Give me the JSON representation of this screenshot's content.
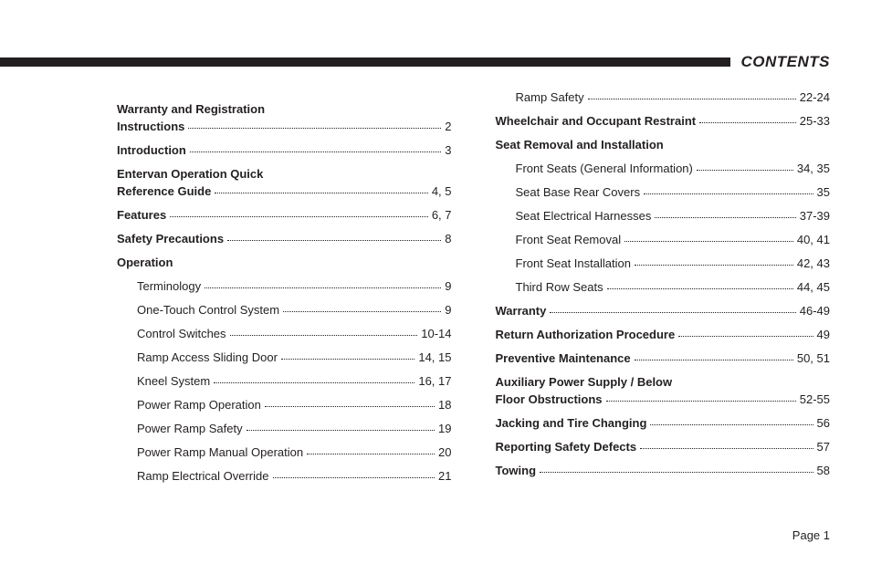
{
  "header": {
    "title": "CONTENTS",
    "bar_color": "#231f20",
    "title_color": "#231f20"
  },
  "footer": {
    "text": "Page 1"
  },
  "columns": [
    [
      {
        "type": "multi",
        "line1": "Warranty and Registration",
        "line2": "Instructions",
        "page": "2"
      },
      {
        "type": "main",
        "label": "Introduction",
        "page": "3"
      },
      {
        "type": "multi",
        "line1": "Entervan Operation Quick",
        "line2": "Reference Guide",
        "page": "4, 5"
      },
      {
        "type": "main",
        "label": "Features",
        "page": "6, 7"
      },
      {
        "type": "main",
        "label": "Safety Precautions",
        "page": "8"
      },
      {
        "type": "heading",
        "label": "Operation"
      },
      {
        "type": "sub",
        "label": "Terminology",
        "page": "9"
      },
      {
        "type": "sub",
        "label": "One-Touch Control System",
        "page": "9"
      },
      {
        "type": "sub",
        "label": "Control Switches",
        "page": "10-14"
      },
      {
        "type": "sub",
        "label": "Ramp Access Sliding Door",
        "page": "14, 15"
      },
      {
        "type": "sub",
        "label": "Kneel System",
        "page": "16, 17"
      },
      {
        "type": "sub",
        "label": "Power Ramp Operation",
        "page": "18"
      },
      {
        "type": "sub",
        "label": "Power Ramp Safety",
        "page": "19"
      },
      {
        "type": "sub",
        "label": "Power Ramp Manual Operation",
        "page": "20"
      },
      {
        "type": "sub",
        "label": "Ramp Electrical Override",
        "page": "21"
      }
    ],
    [
      {
        "type": "sub",
        "label": "Ramp Safety",
        "page": "22-24"
      },
      {
        "type": "main",
        "label": "Wheelchair and Occupant Restraint",
        "page": "25-33"
      },
      {
        "type": "heading",
        "label": "Seat Removal and Installation"
      },
      {
        "type": "sub",
        "label": "Front Seats (General Information)",
        "page": "34, 35"
      },
      {
        "type": "sub",
        "label": "Seat Base Rear Covers",
        "page": "35"
      },
      {
        "type": "sub",
        "label": "Seat Electrical Harnesses",
        "page": "37-39"
      },
      {
        "type": "sub",
        "label": "Front Seat Removal",
        "page": "40, 41"
      },
      {
        "type": "sub",
        "label": "Front Seat Installation",
        "page": "42, 43"
      },
      {
        "type": "sub",
        "label": "Third Row Seats",
        "page": "44, 45"
      },
      {
        "type": "main",
        "label": "Warranty",
        "page": "46-49"
      },
      {
        "type": "main",
        "label": "Return Authorization Procedure",
        "page": "49"
      },
      {
        "type": "main",
        "label": "Preventive Maintenance",
        "page": "50, 51"
      },
      {
        "type": "multi",
        "line1": "Auxiliary Power Supply / Below",
        "line2": "Floor Obstructions",
        "page": "52-55"
      },
      {
        "type": "main",
        "label": "Jacking and Tire Changing",
        "page": "56"
      },
      {
        "type": "main",
        "label": "Reporting Safety Defects",
        "page": "57"
      },
      {
        "type": "main",
        "label": "Towing",
        "page": "58"
      }
    ]
  ]
}
